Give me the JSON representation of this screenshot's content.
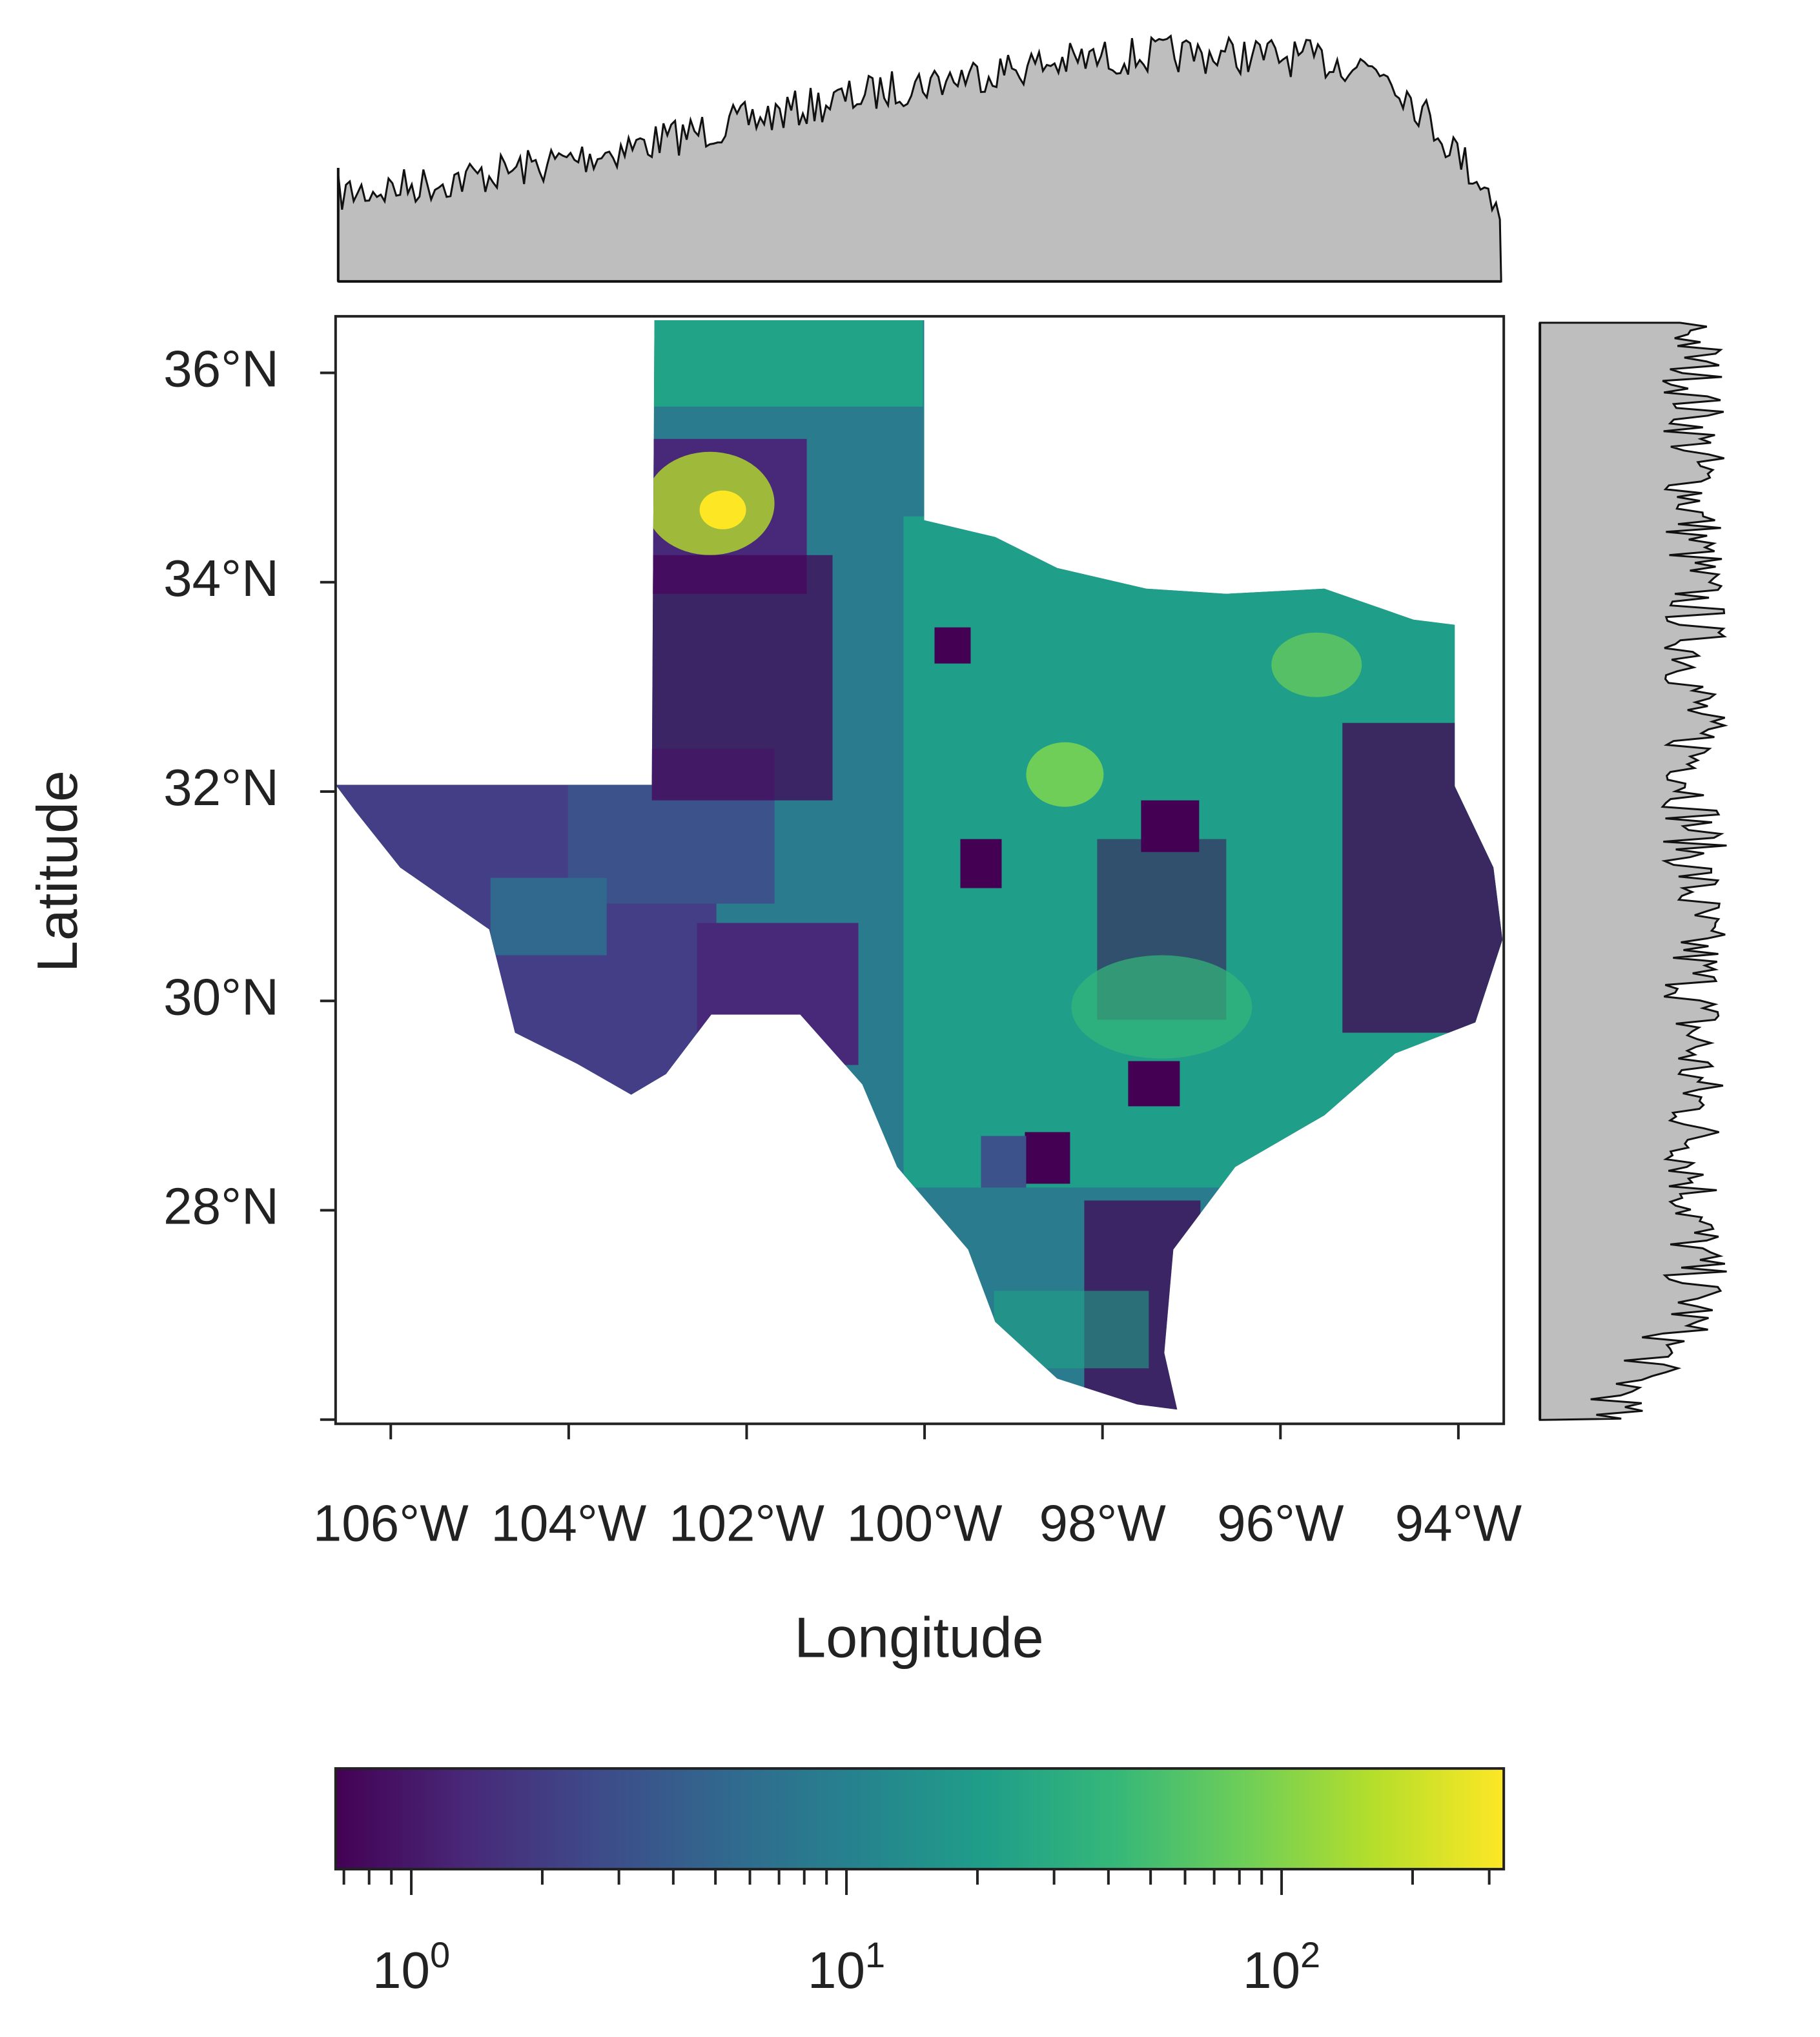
{
  "map": {
    "xlabel": "Longitude",
    "ylabel": "Latitude",
    "xlim": [
      -106.62,
      -93.49
    ],
    "ylim": [
      25.96,
      36.54
    ],
    "xticks": [
      {
        "value": -106,
        "label": "106°W"
      },
      {
        "value": -104,
        "label": "104°W"
      },
      {
        "value": -102,
        "label": "102°W"
      },
      {
        "value": -100,
        "label": "100°W"
      },
      {
        "value": -98,
        "label": "98°W"
      },
      {
        "value": -96,
        "label": "96°W"
      },
      {
        "value": -94,
        "label": "94°W"
      }
    ],
    "yticks": [
      {
        "value": 26,
        "label": null
      },
      {
        "value": 28,
        "label": "28°N"
      },
      {
        "value": 30,
        "label": "30°N"
      },
      {
        "value": 32,
        "label": "32°N"
      },
      {
        "value": 34,
        "label": "34°N"
      },
      {
        "value": 36,
        "label": "36°N"
      }
    ],
    "colorbar": {
      "scale": "log",
      "lim": [
        0.67,
        324
      ],
      "colors": [
        "#440154",
        "#482878",
        "#3e4a89",
        "#31688e",
        "#26828e",
        "#1f9e89",
        "#35b779",
        "#6ece58",
        "#b5de2b",
        "#fde725"
      ],
      "ticks": [
        {
          "value": 1,
          "label": "10",
          "exponent": "0"
        },
        {
          "value": 10,
          "label": "10",
          "exponent": "1"
        },
        {
          "value": 100,
          "label": "10",
          "exponent": "2"
        }
      ],
      "minor_ticks": [
        0.7,
        0.8,
        0.9,
        2,
        3,
        4,
        5,
        6,
        7,
        8,
        9,
        20,
        30,
        40,
        50,
        60,
        70,
        80,
        90,
        200,
        300
      ]
    }
  }
}
